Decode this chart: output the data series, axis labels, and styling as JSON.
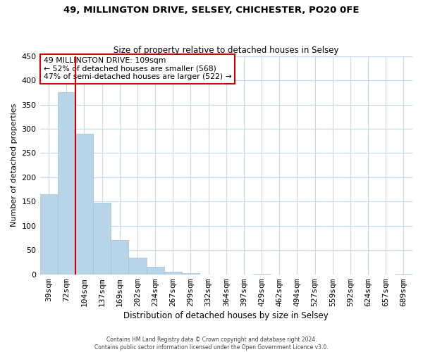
{
  "title": "49, MILLINGTON DRIVE, SELSEY, CHICHESTER, PO20 0FE",
  "subtitle": "Size of property relative to detached houses in Selsey",
  "xlabel": "Distribution of detached houses by size in Selsey",
  "ylabel": "Number of detached properties",
  "bar_color": "#b8d4e8",
  "bar_edge_color": "#a0c0d8",
  "vline_color": "#cc0000",
  "annotation_title": "49 MILLINGTON DRIVE: 109sqm",
  "annotation_line1": "← 52% of detached houses are smaller (568)",
  "annotation_line2": "47% of semi-detached houses are larger (522) →",
  "bins": [
    "39sqm",
    "72sqm",
    "104sqm",
    "137sqm",
    "169sqm",
    "202sqm",
    "234sqm",
    "267sqm",
    "299sqm",
    "332sqm",
    "364sqm",
    "397sqm",
    "429sqm",
    "462sqm",
    "494sqm",
    "527sqm",
    "559sqm",
    "592sqm",
    "624sqm",
    "657sqm",
    "689sqm"
  ],
  "values": [
    165,
    375,
    290,
    148,
    70,
    35,
    15,
    6,
    2,
    0,
    0,
    0,
    1,
    0,
    0,
    0,
    0,
    0,
    0,
    0,
    1
  ],
  "vline_index": 2,
  "ylim": [
    0,
    450
  ],
  "yticks": [
    0,
    50,
    100,
    150,
    200,
    250,
    300,
    350,
    400,
    450
  ],
  "footer1": "Contains HM Land Registry data © Crown copyright and database right 2024.",
  "footer2": "Contains public sector information licensed under the Open Government Licence v3.0.",
  "background_color": "#ffffff",
  "grid_color": "#c8d8e8"
}
